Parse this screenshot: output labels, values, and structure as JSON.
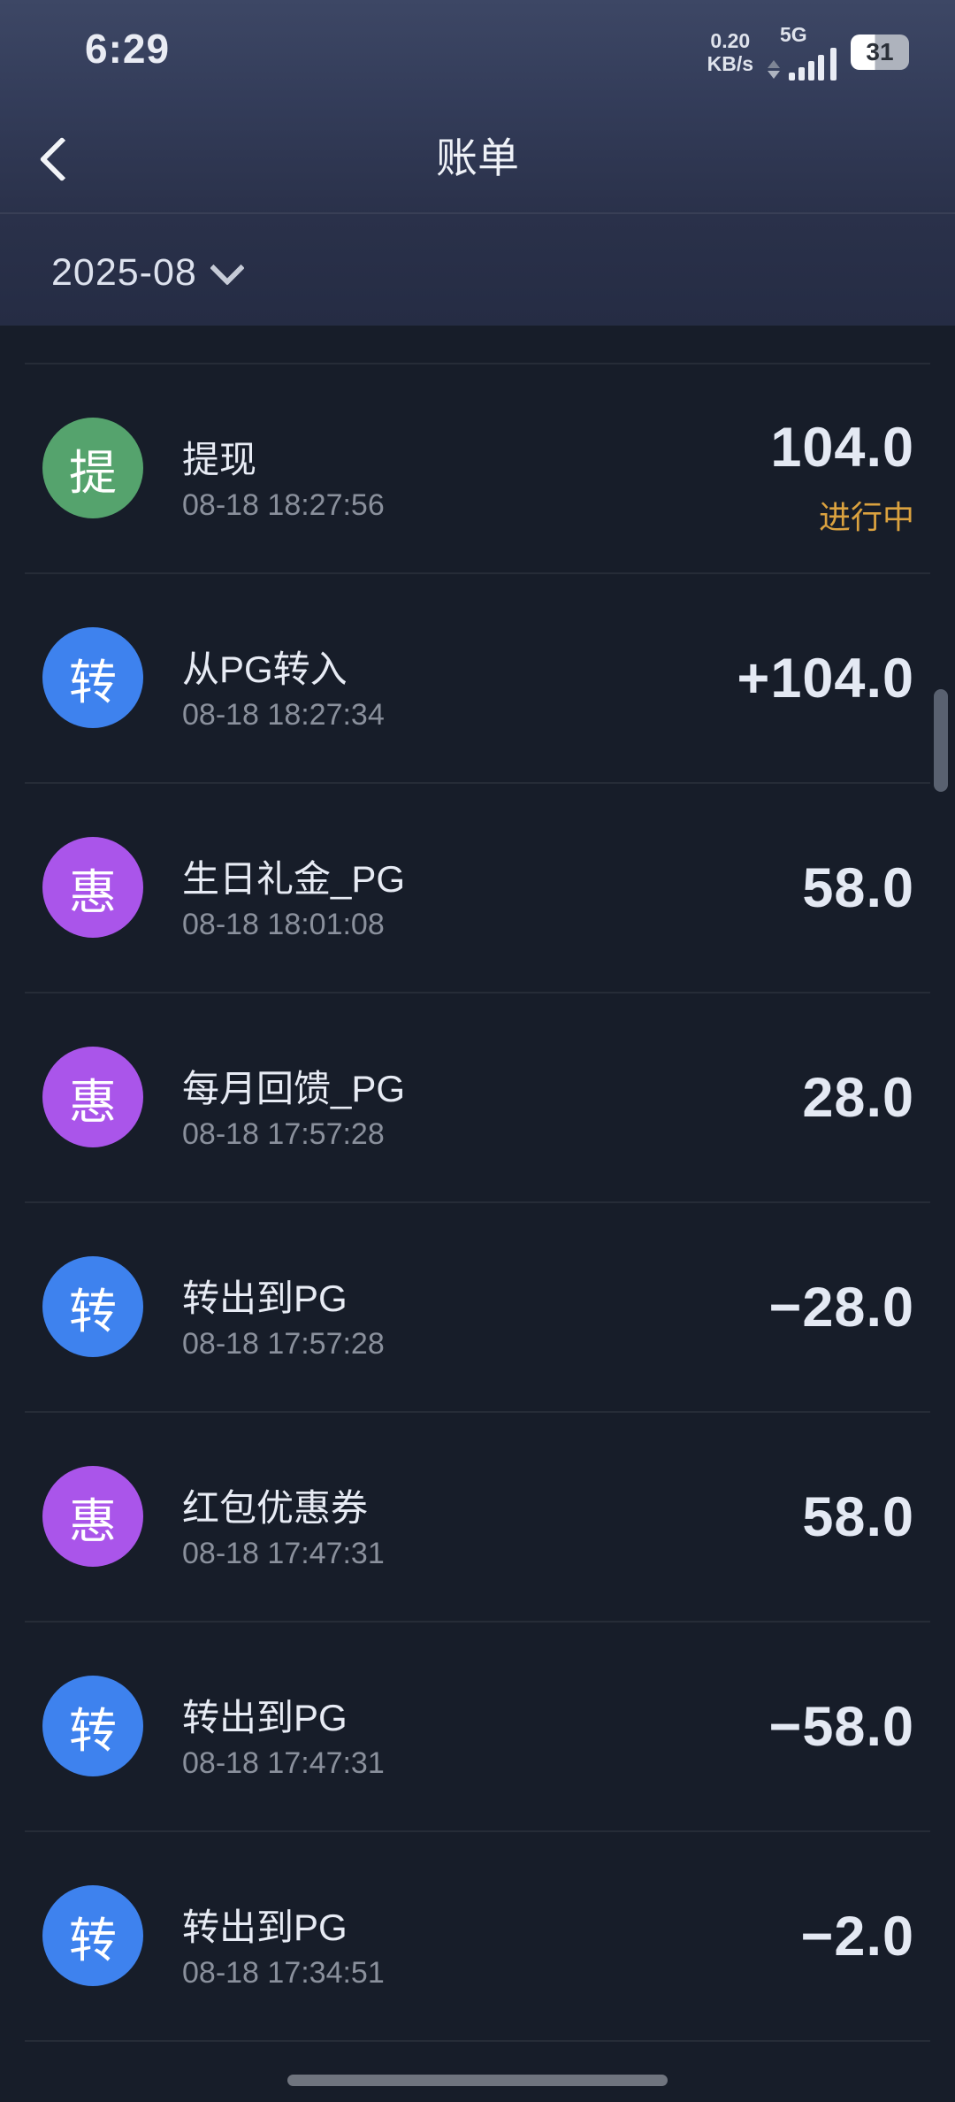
{
  "status_bar": {
    "time": "6:29",
    "net_speed_value": "0.20",
    "net_speed_unit": "KB/s",
    "network_type": "5G",
    "battery_level": "31"
  },
  "nav": {
    "title": "账单"
  },
  "filter": {
    "month": "2025-08"
  },
  "colors": {
    "status_pending": "#dba23f",
    "avatar_green": "#55a36d",
    "avatar_blue": "#3e82ee",
    "avatar_purple": "#aa55ea",
    "background": "#171d29",
    "header_top": "#3d4765"
  },
  "transactions": [
    {
      "avatar": "提",
      "avatar_color": "#55a36d",
      "title": "提现",
      "time": "08-18 18:27:56",
      "amount": "104.0",
      "status": "进行中"
    },
    {
      "avatar": "转",
      "avatar_color": "#3e82ee",
      "title": "从PG转入",
      "time": "08-18 18:27:34",
      "amount": "+104.0"
    },
    {
      "avatar": "惠",
      "avatar_color": "#aa55ea",
      "title": "生日礼金_PG",
      "time": "08-18 18:01:08",
      "amount": "58.0"
    },
    {
      "avatar": "惠",
      "avatar_color": "#aa55ea",
      "title": "每月回馈_PG",
      "time": "08-18 17:57:28",
      "amount": "28.0"
    },
    {
      "avatar": "转",
      "avatar_color": "#3e82ee",
      "title": "转出到PG",
      "time": "08-18 17:57:28",
      "amount": "−28.0"
    },
    {
      "avatar": "惠",
      "avatar_color": "#aa55ea",
      "title": "红包优惠券",
      "time": "08-18 17:47:31",
      "amount": "58.0"
    },
    {
      "avatar": "转",
      "avatar_color": "#3e82ee",
      "title": "转出到PG",
      "time": "08-18 17:47:31",
      "amount": "−58.0"
    },
    {
      "avatar": "转",
      "avatar_color": "#3e82ee",
      "title": "转出到PG",
      "time": "08-18 17:34:51",
      "amount": "−2.0"
    }
  ]
}
